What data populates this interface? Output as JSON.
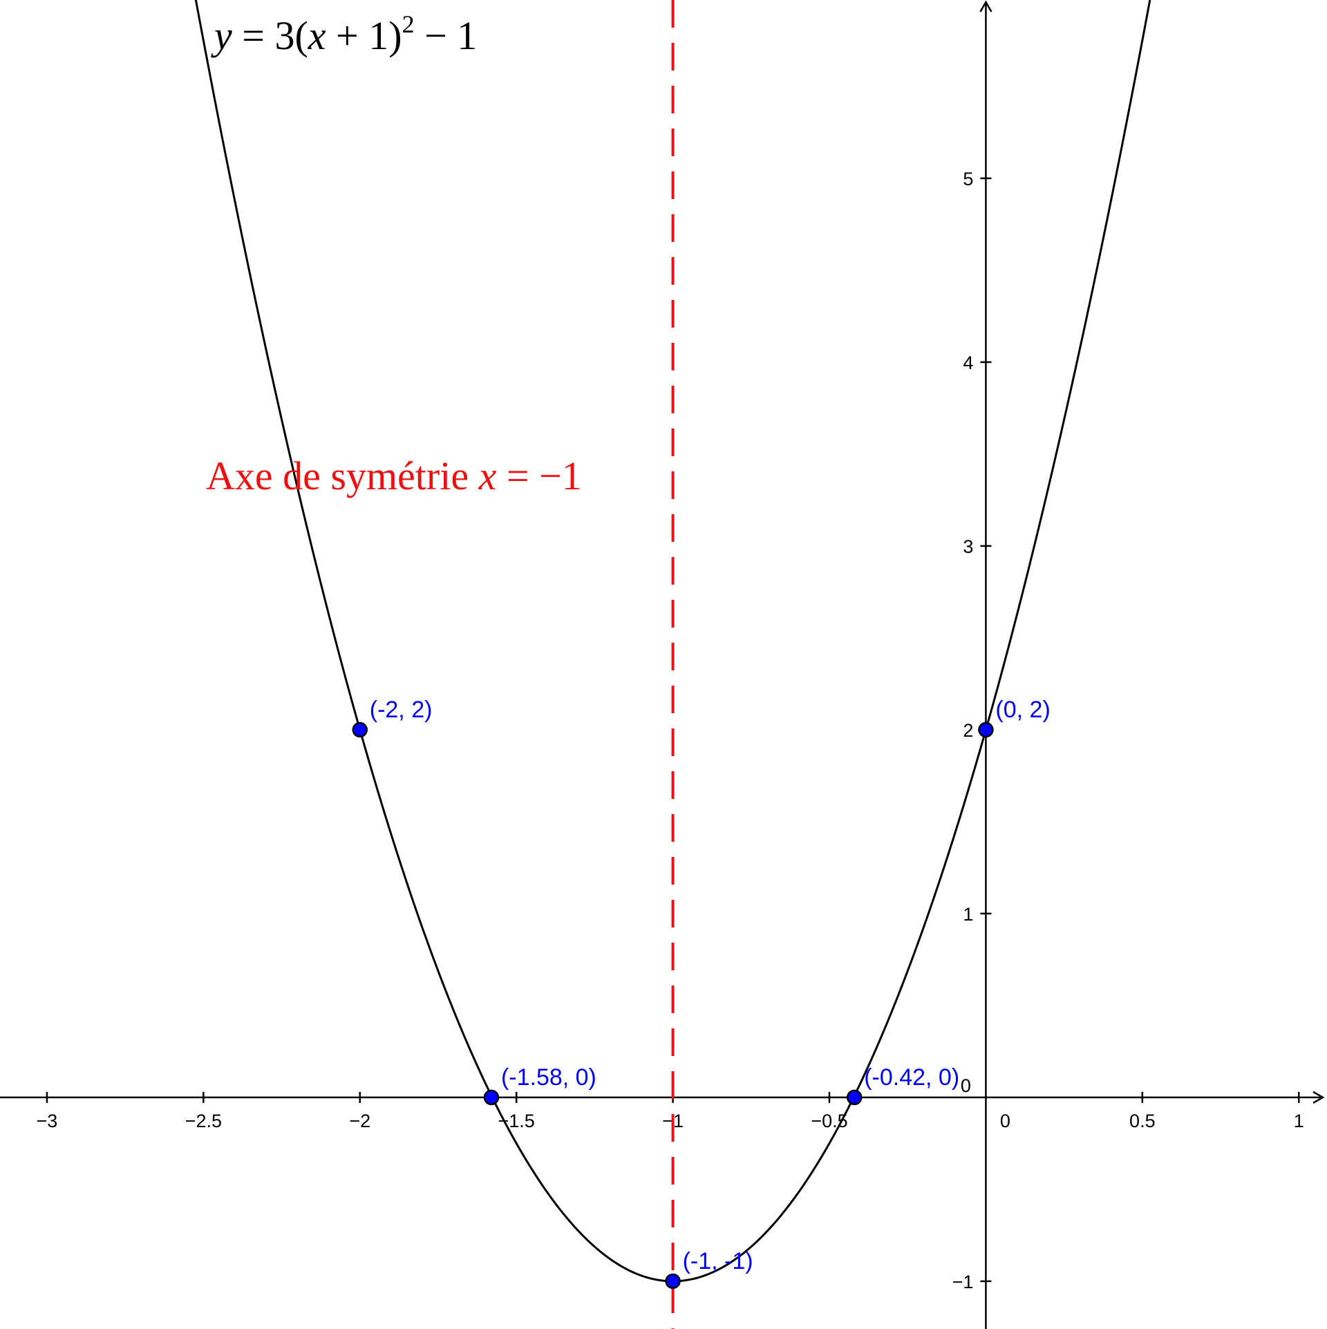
{
  "colors": {
    "curve": "#000000",
    "axis": "#000000",
    "symmetry_line": "#ee1111",
    "points_fill": "#0000ff",
    "points_stroke": "#000000",
    "point_labels": "#0000ff",
    "annotation_red": "#ee1111"
  },
  "chart_data": {
    "type": "line",
    "title": "",
    "xlabel": "",
    "ylabel": "",
    "grid": false,
    "xlim": [
      -3.15,
      1.09
    ],
    "ylim": [
      -1.26,
      5.97
    ],
    "function": {
      "a": 3,
      "h": -1,
      "k": -1
    },
    "x_ticks": [
      {
        "v": -3,
        "label": "−3"
      },
      {
        "v": -2.5,
        "label": "−2.5"
      },
      {
        "v": -2,
        "label": "−2"
      },
      {
        "v": -1.5,
        "label": "−1.5"
      },
      {
        "v": -1,
        "label": "−1"
      },
      {
        "v": -0.5,
        "label": "−0.5"
      },
      {
        "v": 0.5,
        "label": "0.5"
      },
      {
        "v": 1,
        "label": "1"
      }
    ],
    "origin_x_label": "0",
    "origin_y_label": "0",
    "y_ticks": [
      {
        "v": -1,
        "label": "−1"
      },
      {
        "v": 1,
        "label": "1"
      },
      {
        "v": 2,
        "label": "2"
      },
      {
        "v": 3,
        "label": "3"
      },
      {
        "v": 4,
        "label": "4"
      },
      {
        "v": 5,
        "label": "5"
      }
    ],
    "symmetry_x": -1,
    "points": [
      {
        "x": -2,
        "y": 2,
        "label": "(-2, 2)"
      },
      {
        "x": 0,
        "y": 2,
        "label": "(0, 2)"
      },
      {
        "x": -1.58,
        "y": 0,
        "label": "(-1.58, 0)"
      },
      {
        "x": -0.42,
        "y": 0,
        "label": "(-0.42, 0)"
      },
      {
        "x": -1,
        "y": -1,
        "label": "(-1, -1)"
      }
    ],
    "annotations": {
      "equation": {
        "y": "y",
        "eq": " = 3(",
        "x": "x",
        "rest": " + 1)",
        "exp": "2",
        "tail": " − 1"
      },
      "symmetry": {
        "text": "Axe de symétrie ",
        "var": "x",
        "rest": " = −1"
      }
    }
  }
}
